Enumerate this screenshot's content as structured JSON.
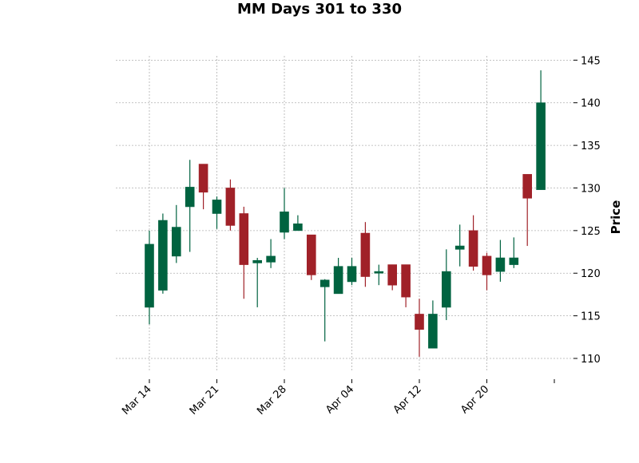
{
  "chart_data": {
    "type": "candlestick",
    "title": "MM Days 301 to 330",
    "ylabel": "Price",
    "xlabel": "",
    "ylim": [
      108.5,
      145.5
    ],
    "yticks": [
      110,
      115,
      120,
      125,
      130,
      135,
      140,
      145
    ],
    "ytick_labels": [
      "110",
      "115",
      "120",
      "125",
      "130",
      "135",
      "140",
      "145"
    ],
    "xtick_labels": [
      "Mar 14",
      "Mar 21",
      "Mar 28",
      "Apr 04",
      "Apr 12",
      "Apr 20",
      ""
    ],
    "xtick_index": [
      0,
      5,
      10,
      15,
      20,
      25,
      30
    ],
    "grid": true,
    "up_color": "#006340",
    "down_color": "#a02128",
    "candles": [
      {
        "open": 116.0,
        "high": 125.0,
        "low": 114.0,
        "close": 123.4
      },
      {
        "open": 118.0,
        "high": 127.0,
        "low": 117.6,
        "close": 126.2
      },
      {
        "open": 122.0,
        "high": 128.0,
        "low": 121.2,
        "close": 125.4
      },
      {
        "open": 127.8,
        "high": 133.3,
        "low": 122.5,
        "close": 130.1
      },
      {
        "open": 132.8,
        "high": 132.8,
        "low": 127.5,
        "close": 129.5
      },
      {
        "open": 127.0,
        "high": 129.0,
        "low": 125.2,
        "close": 128.6
      },
      {
        "open": 130.0,
        "high": 131.0,
        "low": 125.0,
        "close": 125.6
      },
      {
        "open": 127.0,
        "high": 127.8,
        "low": 117.0,
        "close": 121.0
      },
      {
        "open": 121.2,
        "high": 121.8,
        "low": 116.0,
        "close": 121.5
      },
      {
        "open": 121.3,
        "high": 124.0,
        "low": 120.6,
        "close": 122.0
      },
      {
        "open": 124.8,
        "high": 130.0,
        "low": 124.0,
        "close": 127.2
      },
      {
        "open": 125.0,
        "high": 126.8,
        "low": 125.0,
        "close": 125.8
      },
      {
        "open": 124.5,
        "high": 124.5,
        "low": 119.2,
        "close": 119.8
      },
      {
        "open": 118.4,
        "high": 119.3,
        "low": 112.0,
        "close": 119.2
      },
      {
        "open": 117.6,
        "high": 121.8,
        "low": 117.6,
        "close": 120.8
      },
      {
        "open": 119.0,
        "high": 121.8,
        "low": 118.6,
        "close": 120.8
      },
      {
        "open": 124.7,
        "high": 126.0,
        "low": 118.4,
        "close": 119.6
      },
      {
        "open": 120.0,
        "high": 121.0,
        "low": 118.6,
        "close": 120.2
      },
      {
        "open": 121.0,
        "high": 121.0,
        "low": 118.0,
        "close": 118.6
      },
      {
        "open": 121.0,
        "high": 121.0,
        "low": 116.0,
        "close": 117.2
      },
      {
        "open": 115.2,
        "high": 117.0,
        "low": 110.2,
        "close": 113.4
      },
      {
        "open": 111.2,
        "high": 116.8,
        "low": 111.2,
        "close": 115.2
      },
      {
        "open": 116.0,
        "high": 122.8,
        "low": 114.5,
        "close": 120.2
      },
      {
        "open": 122.8,
        "high": 125.7,
        "low": 120.8,
        "close": 123.2
      },
      {
        "open": 125.0,
        "high": 126.8,
        "low": 120.3,
        "close": 120.8
      },
      {
        "open": 122.0,
        "high": 122.4,
        "low": 118.0,
        "close": 119.8
      },
      {
        "open": 120.2,
        "high": 123.9,
        "low": 119.0,
        "close": 121.8
      },
      {
        "open": 121.0,
        "high": 124.2,
        "low": 120.6,
        "close": 121.8
      },
      {
        "open": 131.6,
        "high": 131.6,
        "low": 123.2,
        "close": 128.8
      },
      {
        "open": 129.8,
        "high": 143.8,
        "low": 129.8,
        "close": 140.0
      }
    ]
  }
}
